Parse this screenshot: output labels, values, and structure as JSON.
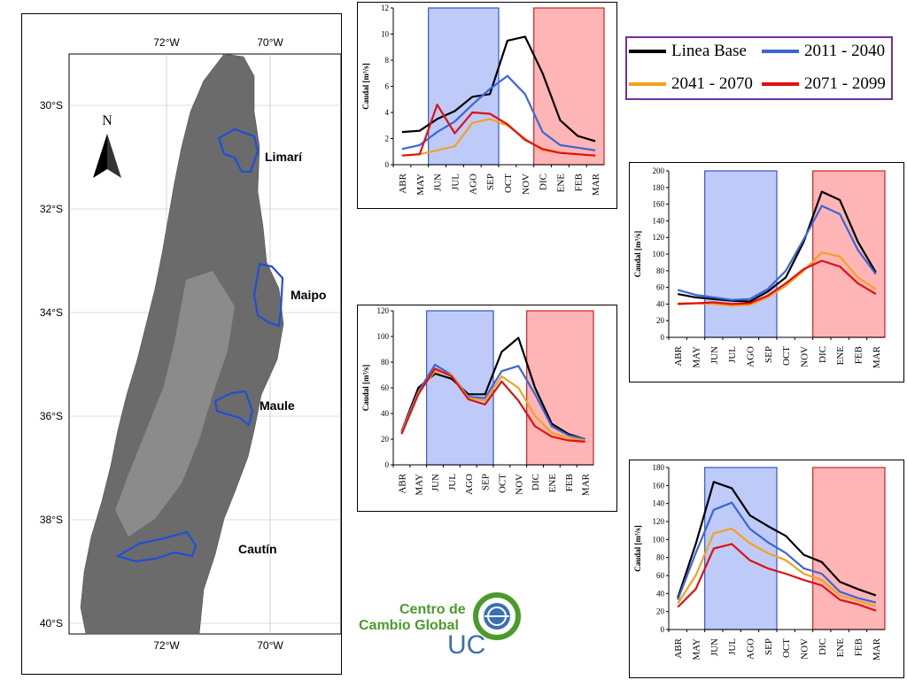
{
  "map": {
    "lon_labels_top": [
      "72°W",
      "70°W"
    ],
    "lon_labels_bottom": [
      "72°W",
      "70°W"
    ],
    "lat_labels": [
      "30°S",
      "32°S",
      "34°S",
      "36°S",
      "38°S",
      "40°S"
    ],
    "north_label": "N",
    "basins": [
      "Limarí",
      "Maipo",
      "Maule",
      "Cautín"
    ],
    "basin_outline_color": "#1f4fd8",
    "terrain_color": "#6b6b6b"
  },
  "legend": {
    "items": [
      {
        "label": "Linea Base",
        "color": "#000000"
      },
      {
        "label": "2011 - 2040",
        "color": "#3a66d6"
      },
      {
        "label": "2041 - 2070",
        "color": "#f5a020"
      },
      {
        "label": "2071 - 2099",
        "color": "#e01010"
      }
    ],
    "border_color": "#7030a0"
  },
  "logo": {
    "line1": "Centro de",
    "line2": "Cambio Global",
    "line3": "UC"
  },
  "chart_data": [
    {
      "id": "limari",
      "type": "line",
      "ylabel": "Caudal [m³/s]",
      "ylim": [
        0,
        12
      ],
      "yticks": [
        0,
        2,
        4,
        6,
        8,
        10,
        12
      ],
      "categories": [
        "ABR",
        "MAY",
        "JUN",
        "JUL",
        "AGO",
        "SEP",
        "OCT",
        "NOV",
        "DIC",
        "ENE",
        "FEB",
        "MAR"
      ],
      "shade_blue": [
        "JUN",
        "SEP"
      ],
      "shade_red": [
        "DIC",
        "MAR"
      ],
      "series": [
        {
          "name": "Linea Base",
          "color": "#000000",
          "values": [
            2.5,
            2.6,
            3.5,
            4.1,
            5.2,
            5.4,
            9.5,
            9.8,
            7.0,
            3.4,
            2.2,
            1.8
          ]
        },
        {
          "name": "2011 - 2040",
          "color": "#3a66d6",
          "values": [
            1.2,
            1.5,
            2.5,
            3.3,
            4.6,
            5.8,
            6.8,
            5.4,
            2.5,
            1.5,
            1.3,
            1.1
          ]
        },
        {
          "name": "2041 - 2070",
          "color": "#f5a020",
          "values": [
            0.7,
            0.8,
            1.1,
            1.4,
            3.2,
            3.5,
            3.0,
            2.0,
            1.1,
            0.9,
            0.8,
            0.7
          ]
        },
        {
          "name": "2071 - 2099",
          "color": "#e01010",
          "values": [
            0.7,
            0.8,
            4.6,
            2.4,
            4.0,
            3.9,
            3.1,
            1.9,
            1.2,
            0.9,
            0.8,
            0.7
          ]
        }
      ]
    },
    {
      "id": "maipo",
      "type": "line",
      "ylabel": "Caudal [m³/s]",
      "ylim": [
        0,
        120
      ],
      "yticks": [
        0,
        20,
        40,
        60,
        80,
        100,
        120
      ],
      "categories": [
        "ABR",
        "MAY",
        "JUN",
        "JUL",
        "AGO",
        "SEP",
        "OCT",
        "NOV",
        "DIC",
        "ENE",
        "FEB",
        "MAR"
      ],
      "shade_blue": [
        "JUN",
        "SEP"
      ],
      "shade_red": [
        "DIC",
        "MAR"
      ],
      "series": [
        {
          "name": "Linea Base",
          "color": "#000000",
          "values": [
            26,
            60,
            71,
            67,
            55,
            55,
            88,
            99,
            60,
            32,
            24,
            20
          ]
        },
        {
          "name": "2011 - 2040",
          "color": "#3a66d6",
          "values": [
            26,
            57,
            78,
            70,
            53,
            52,
            73,
            77,
            55,
            30,
            23,
            20
          ]
        },
        {
          "name": "2041 - 2070",
          "color": "#f5a020",
          "values": [
            25,
            56,
            73,
            70,
            52,
            50,
            69,
            60,
            38,
            25,
            21,
            19
          ]
        },
        {
          "name": "2071 - 2099",
          "color": "#e01010",
          "values": [
            24,
            55,
            75,
            69,
            51,
            47,
            65,
            50,
            30,
            22,
            19,
            18
          ]
        }
      ]
    },
    {
      "id": "maule",
      "type": "line",
      "ylabel": "Caudal [m³/s]",
      "ylim": [
        0,
        200
      ],
      "yticks": [
        0,
        20,
        40,
        60,
        80,
        100,
        120,
        140,
        160,
        180,
        200
      ],
      "categories": [
        "ABR",
        "MAY",
        "JUN",
        "JUL",
        "AGO",
        "SEP",
        "OCT",
        "NOV",
        "DIC",
        "ENE",
        "FEB",
        "MAR"
      ],
      "shade_blue": [
        "JUN",
        "SEP"
      ],
      "shade_red": [
        "DIC",
        "MAR"
      ],
      "series": [
        {
          "name": "Linea Base",
          "color": "#000000",
          "values": [
            52,
            48,
            46,
            44,
            43,
            55,
            72,
            115,
            175,
            165,
            115,
            78
          ]
        },
        {
          "name": "2011 - 2040",
          "color": "#3a66d6",
          "values": [
            57,
            51,
            48,
            45,
            46,
            58,
            80,
            118,
            158,
            148,
            105,
            76
          ]
        },
        {
          "name": "2041 - 2070",
          "color": "#f5a020",
          "values": [
            41,
            41,
            40,
            38,
            39,
            48,
            62,
            80,
            102,
            97,
            72,
            58
          ]
        },
        {
          "name": "2071 - 2099",
          "color": "#e01010",
          "values": [
            40,
            41,
            42,
            40,
            41,
            50,
            65,
            82,
            92,
            85,
            65,
            52
          ]
        }
      ]
    },
    {
      "id": "cautin",
      "type": "line",
      "ylabel": "Caudal [m³/s]",
      "ylim": [
        0,
        180
      ],
      "yticks": [
        0,
        20,
        40,
        60,
        80,
        100,
        120,
        140,
        160,
        180
      ],
      "categories": [
        "ABR",
        "MAY",
        "JUN",
        "JUL",
        "AGO",
        "SEP",
        "OCT",
        "NOV",
        "DIC",
        "ENE",
        "FEB",
        "MAR"
      ],
      "shade_blue": [
        "JUN",
        "SEP"
      ],
      "shade_red": [
        "DIC",
        "MAR"
      ],
      "series": [
        {
          "name": "Linea Base",
          "color": "#000000",
          "values": [
            35,
            95,
            164,
            157,
            127,
            115,
            104,
            83,
            75,
            53,
            45,
            38
          ]
        },
        {
          "name": "2011 - 2040",
          "color": "#3a66d6",
          "values": [
            33,
            85,
            133,
            141,
            112,
            97,
            85,
            68,
            62,
            42,
            35,
            30
          ]
        },
        {
          "name": "2041 - 2070",
          "color": "#f5a020",
          "values": [
            29,
            60,
            107,
            112,
            96,
            85,
            77,
            62,
            55,
            38,
            32,
            26
          ]
        },
        {
          "name": "2071 - 2099",
          "color": "#e01010",
          "values": [
            25,
            45,
            90,
            95,
            77,
            68,
            62,
            55,
            49,
            33,
            28,
            21
          ]
        }
      ]
    }
  ]
}
